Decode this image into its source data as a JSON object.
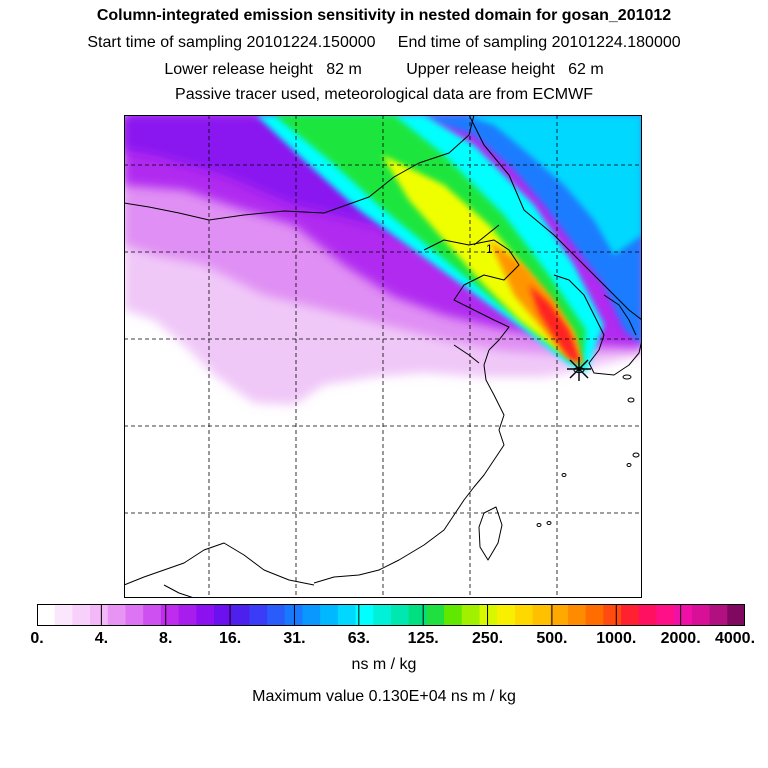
{
  "header": {
    "title": "Column-integrated emission sensitivity in nested domain for gosan_201012",
    "line2": "Start time of sampling 20101224.150000     End time of sampling 20101224.180000",
    "line3": "Lower release height   82 m          Upper release height   62 m",
    "line4": "Passive tracer used, meteorological data are from ECMWF"
  },
  "map": {
    "label_marker": "1",
    "receptor_symbol": "asterisk",
    "plume_palette": {
      "background": "#ffffff",
      "light_lilac": "#f0c8f8",
      "violet": "#b02cf0",
      "purple": "#8a14f0",
      "blue": "#0a8cff",
      "cyan": "#00ffff",
      "green": "#1ee63c",
      "yellow": "#f0ff00",
      "orange": "#ff9600",
      "red": "#ff2020"
    }
  },
  "colorbar": {
    "colors": [
      "#ffffff",
      "#fbe6fd",
      "#f8d0fb",
      "#f2b8f8",
      "#e894f5",
      "#dc74f3",
      "#cf50f0",
      "#bf2cee",
      "#a81cee",
      "#8c10f0",
      "#6c10f0",
      "#4e20ee",
      "#3a3cf8",
      "#2a5cfc",
      "#1878ff",
      "#0a98ff",
      "#00b8ff",
      "#00d8ff",
      "#00ffff",
      "#00f0d8",
      "#00e8b0",
      "#00e080",
      "#20e040",
      "#60e800",
      "#a0f000",
      "#d8f800",
      "#f8f000",
      "#ffd800",
      "#ffc000",
      "#ffa800",
      "#ff8c00",
      "#ff6c00",
      "#ff4a10",
      "#ff2030",
      "#ff1060",
      "#ff1088",
      "#f010a8",
      "#d81098",
      "#b01080",
      "#800860"
    ],
    "tick_labels": [
      "0.",
      "4.",
      "8.",
      "16.",
      "31.",
      "63.",
      "125.",
      "250.",
      "500.",
      "1000.",
      "2000.",
      "4000."
    ],
    "units": "ns m / kg",
    "maximum_label": "Maximum value  0.130E+04 ns m / kg"
  }
}
